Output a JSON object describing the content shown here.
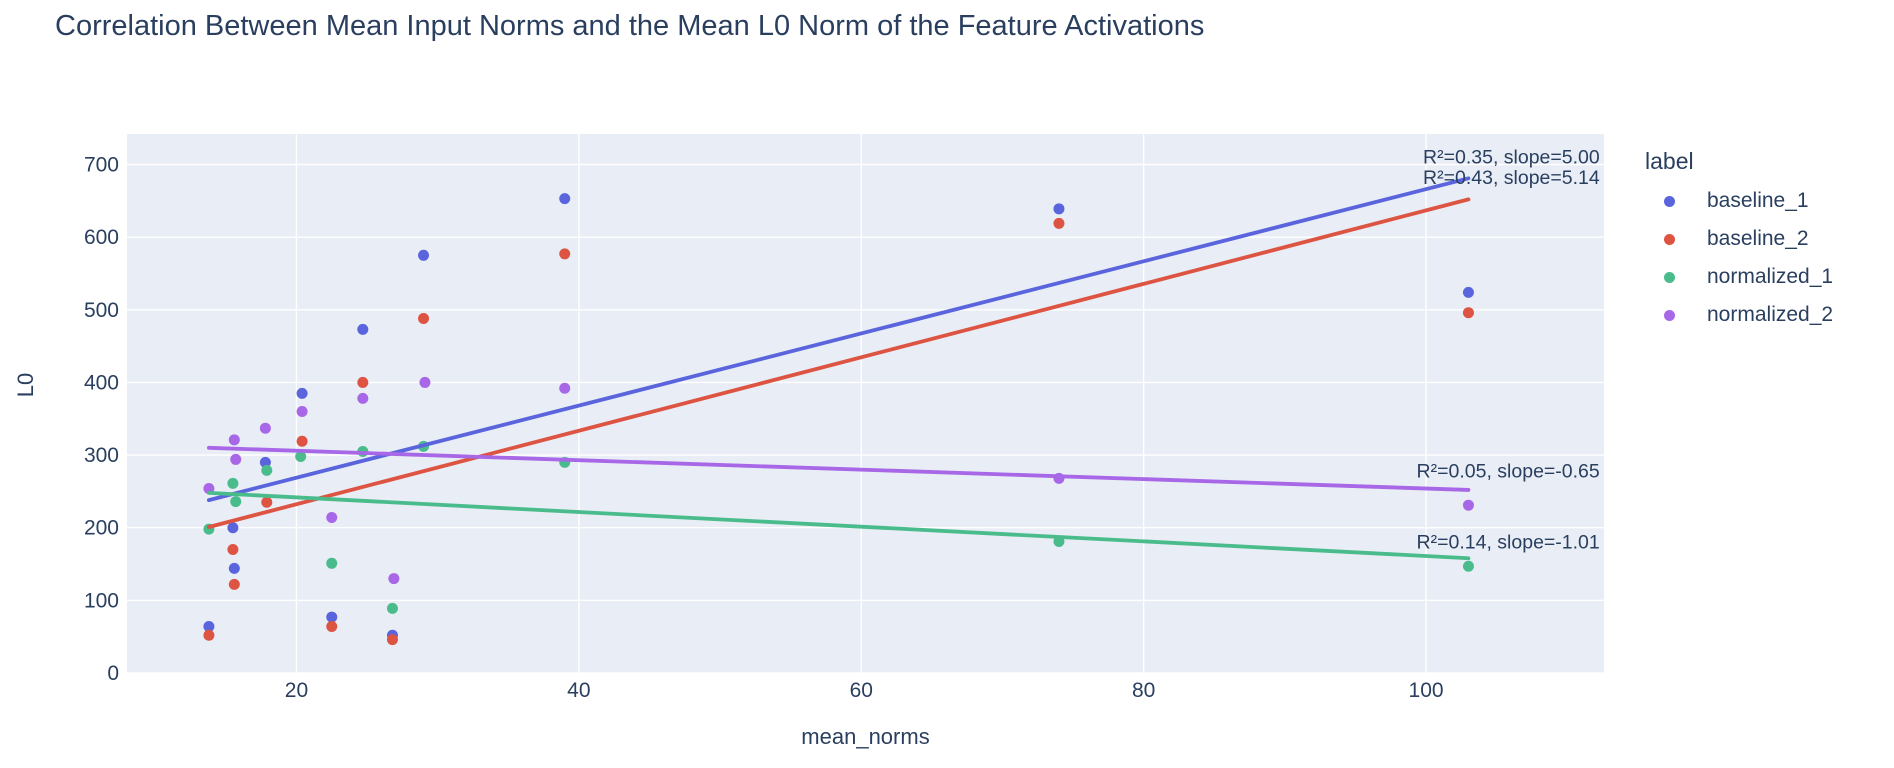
{
  "figure": {
    "title": "Correlation Between Mean Input Norms and the Mean L0 Norm of the Feature Activations"
  },
  "legend": {
    "title": "label",
    "items": [
      {
        "label": "baseline_1",
        "color": "#5a64dd"
      },
      {
        "label": "baseline_2",
        "color": "#dd5442"
      },
      {
        "label": "normalized_1",
        "color": "#4abc8c"
      },
      {
        "label": "normalized_2",
        "color": "#a767e6"
      }
    ]
  },
  "colors": {
    "text": "#2a3f5f",
    "plot_background": "#e8edf6",
    "gridline": "#ffffff",
    "paper_background": "#ffffff"
  },
  "chart_data": {
    "type": "scatter",
    "title": "Correlation Between Mean Input Norms and the Mean L0 Norm of the Feature Activations",
    "xlabel": "mean_norms",
    "ylabel": "L0",
    "x_ticks": [
      20,
      40,
      60,
      80,
      100
    ],
    "y_ticks": [
      0,
      100,
      200,
      300,
      400,
      500,
      600,
      700
    ],
    "x_range": [
      8,
      112.6
    ],
    "y_range": [
      0,
      742
    ],
    "grid": true,
    "legend_position": "right",
    "series": [
      {
        "name": "baseline_1",
        "color": "#5a64dd",
        "x": [
          13.8,
          15.5,
          15.6,
          17.8,
          20.4,
          22.5,
          24.7,
          26.8,
          29.0,
          39.0,
          74.0,
          103.0
        ],
        "y": [
          64,
          200,
          144,
          290,
          385,
          77,
          473,
          52,
          575,
          653,
          639,
          524
        ],
        "trend": {
          "r2": 0.43,
          "slope": 5.14,
          "x0": 13.8,
          "y0": 238,
          "x1": 103.0,
          "y1": 681,
          "annotation": "R²=0.43, slope=5.14"
        }
      },
      {
        "name": "baseline_2",
        "color": "#dd5442",
        "x": [
          13.8,
          15.5,
          15.6,
          17.9,
          20.4,
          22.5,
          24.7,
          26.8,
          29.0,
          39.0,
          74.0,
          103.0
        ],
        "y": [
          52,
          170,
          122,
          235,
          319,
          64,
          400,
          46,
          488,
          577,
          619,
          496
        ],
        "trend": {
          "r2": 0.35,
          "slope": 5.0,
          "x0": 13.8,
          "y0": 201,
          "x1": 103.0,
          "y1": 652,
          "annotation": "R²=0.35, slope=5.00"
        }
      },
      {
        "name": "normalized_1",
        "color": "#4abc8c",
        "x": [
          13.8,
          15.5,
          15.7,
          17.9,
          20.3,
          22.5,
          24.7,
          26.8,
          29.0,
          39.0,
          74.0,
          103.0
        ],
        "y": [
          198,
          261,
          236,
          279,
          298,
          151,
          305,
          89,
          312,
          290,
          181,
          147
        ],
        "trend": {
          "r2": 0.14,
          "slope": -1.01,
          "x0": 13.8,
          "y0": 248,
          "x1": 103.0,
          "y1": 158,
          "annotation": "R²=0.14, slope=-1.01"
        }
      },
      {
        "name": "normalized_2",
        "color": "#a767e6",
        "x": [
          13.8,
          15.6,
          15.7,
          17.8,
          20.4,
          22.5,
          24.7,
          26.9,
          29.1,
          39.0,
          74.0,
          103.0
        ],
        "y": [
          254,
          321,
          294,
          337,
          360,
          214,
          378,
          130,
          400,
          392,
          268,
          231
        ],
        "trend": {
          "r2": 0.05,
          "slope": -0.65,
          "x0": 13.8,
          "y0": 310,
          "x1": 103.0,
          "y1": 252,
          "annotation": "R²=0.05, slope=-0.65"
        }
      }
    ],
    "annotations": [
      {
        "text": "R²=0.35, slope=5.00",
        "x": 112.3,
        "y": 711,
        "align": "right"
      },
      {
        "text": "R²=0.43, slope=5.14",
        "x": 112.3,
        "y": 683,
        "align": "right"
      },
      {
        "text": "R²=0.05, slope=-0.65",
        "x": 112.3,
        "y": 279,
        "align": "right"
      },
      {
        "text": "R²=0.14, slope=-1.01",
        "x": 112.3,
        "y": 181,
        "align": "right"
      }
    ]
  }
}
